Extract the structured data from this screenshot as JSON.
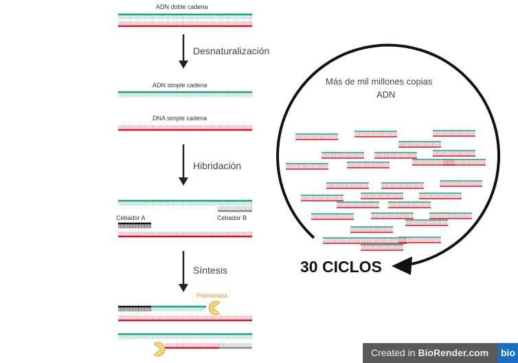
{
  "labels": {
    "double": "ADN doble cadena",
    "single1": "ADN simple cadena",
    "single2": "DNA simple cadena",
    "primer_a": "Cebador A",
    "primer_b": "Cebador B",
    "polymerase": "Polimerasa"
  },
  "steps": [
    "Desnaturalización",
    "Hibridación",
    "Síntesis"
  ],
  "circle": {
    "text_line1": "Más de mil millones copias",
    "text_line2": "ADN",
    "cycles": "30 CICLOS"
  },
  "badge": {
    "created": "Created in ",
    "brand": "BioRender.com",
    "logo": "bio"
  },
  "colors": {
    "teal": "#1f9e84",
    "teal_light": "#9fd8c8",
    "red": "#c8182a",
    "red_light": "#f0a0a8",
    "gray": "#888888",
    "black": "#111111",
    "polymerase": "#f5d37a",
    "label_orange": "#e8922e"
  }
}
